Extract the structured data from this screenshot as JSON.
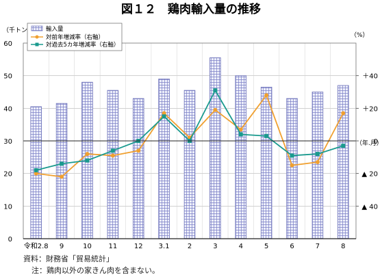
{
  "chart_data": {
    "type": "bar+line",
    "title": "図１２　鶏肉輸入量の推移",
    "left_unit": "（千トン）",
    "right_unit": "（%）",
    "x_unit": "（年.月）",
    "categories": [
      "令和2.8",
      "9",
      "10",
      "11",
      "12",
      "3.1",
      "2",
      "3",
      "4",
      "5",
      "6",
      "7",
      "8"
    ],
    "left_ylim": [
      0,
      60
    ],
    "left_ticks": [
      "0",
      "10",
      "20",
      "30",
      "40",
      "50",
      "60"
    ],
    "right_ylim": [
      -60,
      60
    ],
    "right_ticks": [
      {
        "value": 40,
        "label": "＋40"
      },
      {
        "value": 20,
        "label": "＋20"
      },
      {
        "value": 0,
        "label": "0"
      },
      {
        "value": -20,
        "label": "▲ 20"
      },
      {
        "value": -40,
        "label": "▲ 40"
      }
    ],
    "series": [
      {
        "name": "輸入量",
        "kind": "bar",
        "axis": "left",
        "values": [
          40.5,
          41.5,
          48,
          45.5,
          43,
          49,
          45.5,
          55.5,
          50,
          46.5,
          43,
          45,
          47
        ]
      },
      {
        "name": "対前年増減率（右軸）",
        "kind": "line",
        "axis": "right",
        "color": "#f0a030",
        "values": [
          -20,
          -22,
          -8,
          -9,
          -6,
          17,
          2,
          19,
          7,
          28,
          -15,
          -13,
          17
        ]
      },
      {
        "name": "対過去5カ年増減率（右軸）",
        "kind": "line",
        "axis": "right",
        "color": "#1a9a8e",
        "values": [
          -18,
          -14,
          -12,
          -6,
          0,
          15,
          0,
          31,
          4,
          3,
          -9,
          -8,
          -3
        ]
      }
    ],
    "grid": true,
    "legend": "top-left"
  },
  "notes": {
    "source": "資料：財務省「貿易統計」",
    "note": "注：鶏肉以外の家きん肉を含まない。"
  }
}
